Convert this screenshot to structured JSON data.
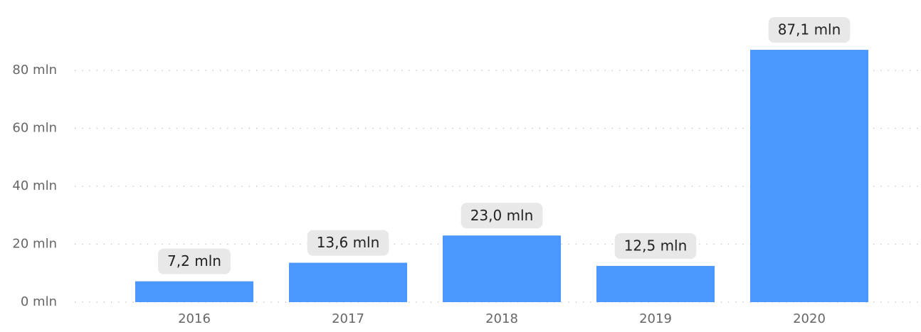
{
  "chart_data": {
    "type": "bar",
    "categories": [
      "2016",
      "2017",
      "2018",
      "2019",
      "2020"
    ],
    "values": [
      7.2,
      13.6,
      23.0,
      12.5,
      87.1
    ],
    "value_labels": [
      "7,2 mln",
      "13,6 mln",
      "23,0 mln",
      "12,5 mln",
      "87,1 mln"
    ],
    "color": "#4a98ff",
    "ylim": [
      0,
      100
    ],
    "yticks": [
      {
        "value": 0,
        "label": "0 mln"
      },
      {
        "value": 20,
        "label": "20 mln"
      },
      {
        "value": 40,
        "label": "40 mln"
      },
      {
        "value": 60,
        "label": "60 mln"
      },
      {
        "value": 80,
        "label": "80 mln"
      }
    ],
    "grid": true
  }
}
